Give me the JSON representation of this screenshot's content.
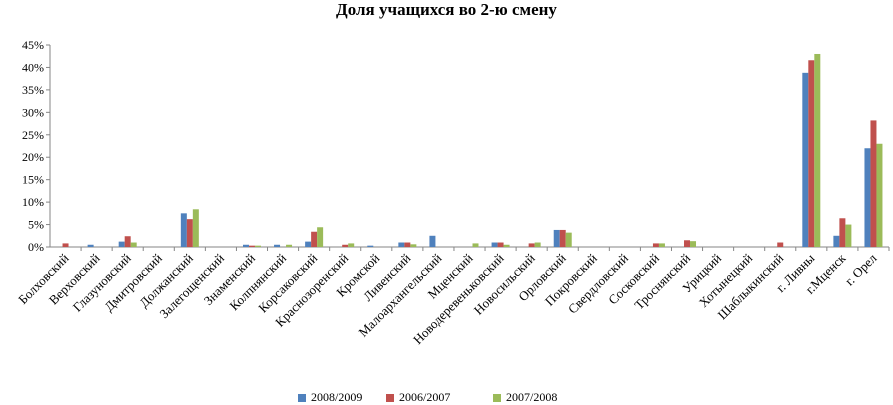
{
  "chart_data": {
    "type": "bar",
    "title": "Доля учащихся во 2-ю смену",
    "xlabel": "",
    "ylabel": "",
    "ylim": [
      0,
      45
    ],
    "yticks": [
      "0%",
      "5%",
      "10%",
      "15%",
      "20%",
      "25%",
      "30%",
      "35%",
      "40%",
      "45%"
    ],
    "grid": false,
    "legend_position": "bottom",
    "categories": [
      "Болховский",
      "Верховский",
      "Глазуновский",
      "Дмитровский",
      "Должанский",
      "Залегощенский",
      "Знаменский",
      "Колпнянский",
      "Корсаковский",
      "Краснозоренский",
      "Кромской",
      "Ливенский",
      "Малоархангельский",
      "Мценский",
      "Новодеревеньковский",
      "Новосильский",
      "Орловский",
      "Покровский",
      "Свердловский",
      "Сосковский",
      "Троснянский",
      "Урицкий",
      "Хотынецкий",
      "Шаблыкинский",
      "г. Ливны",
      "г.Мценск",
      "г. Орел"
    ],
    "series": [
      {
        "name": "2008/2009",
        "color": "#4f81bd",
        "values": [
          0,
          0.5,
          1.2,
          0,
          7.5,
          0,
          0.5,
          0.5,
          1.2,
          0,
          0.3,
          1.0,
          2.5,
          0,
          1.0,
          0,
          3.8,
          0,
          0,
          0,
          0,
          0,
          0,
          0,
          38.8,
          2.5,
          22
        ]
      },
      {
        "name": "2006/2007",
        "color": "#c0504d",
        "values": [
          0.8,
          0,
          2.4,
          0,
          6.2,
          0,
          0.3,
          0,
          3.4,
          0.5,
          0,
          1.0,
          0,
          0,
          1.0,
          0.8,
          3.8,
          0,
          0,
          0.8,
          1.5,
          0,
          0,
          1.0,
          41.6,
          6.4,
          28.2
        ]
      },
      {
        "name": "2007/2008",
        "color": "#9bbb59",
        "values": [
          0,
          0,
          1.0,
          0,
          8.4,
          0,
          0.3,
          0.5,
          4.4,
          0.8,
          0,
          0.6,
          0,
          0.8,
          0.5,
          1.0,
          3.2,
          0,
          0,
          0.8,
          1.3,
          0,
          0,
          0,
          43.0,
          5.0,
          23.0
        ]
      }
    ]
  }
}
